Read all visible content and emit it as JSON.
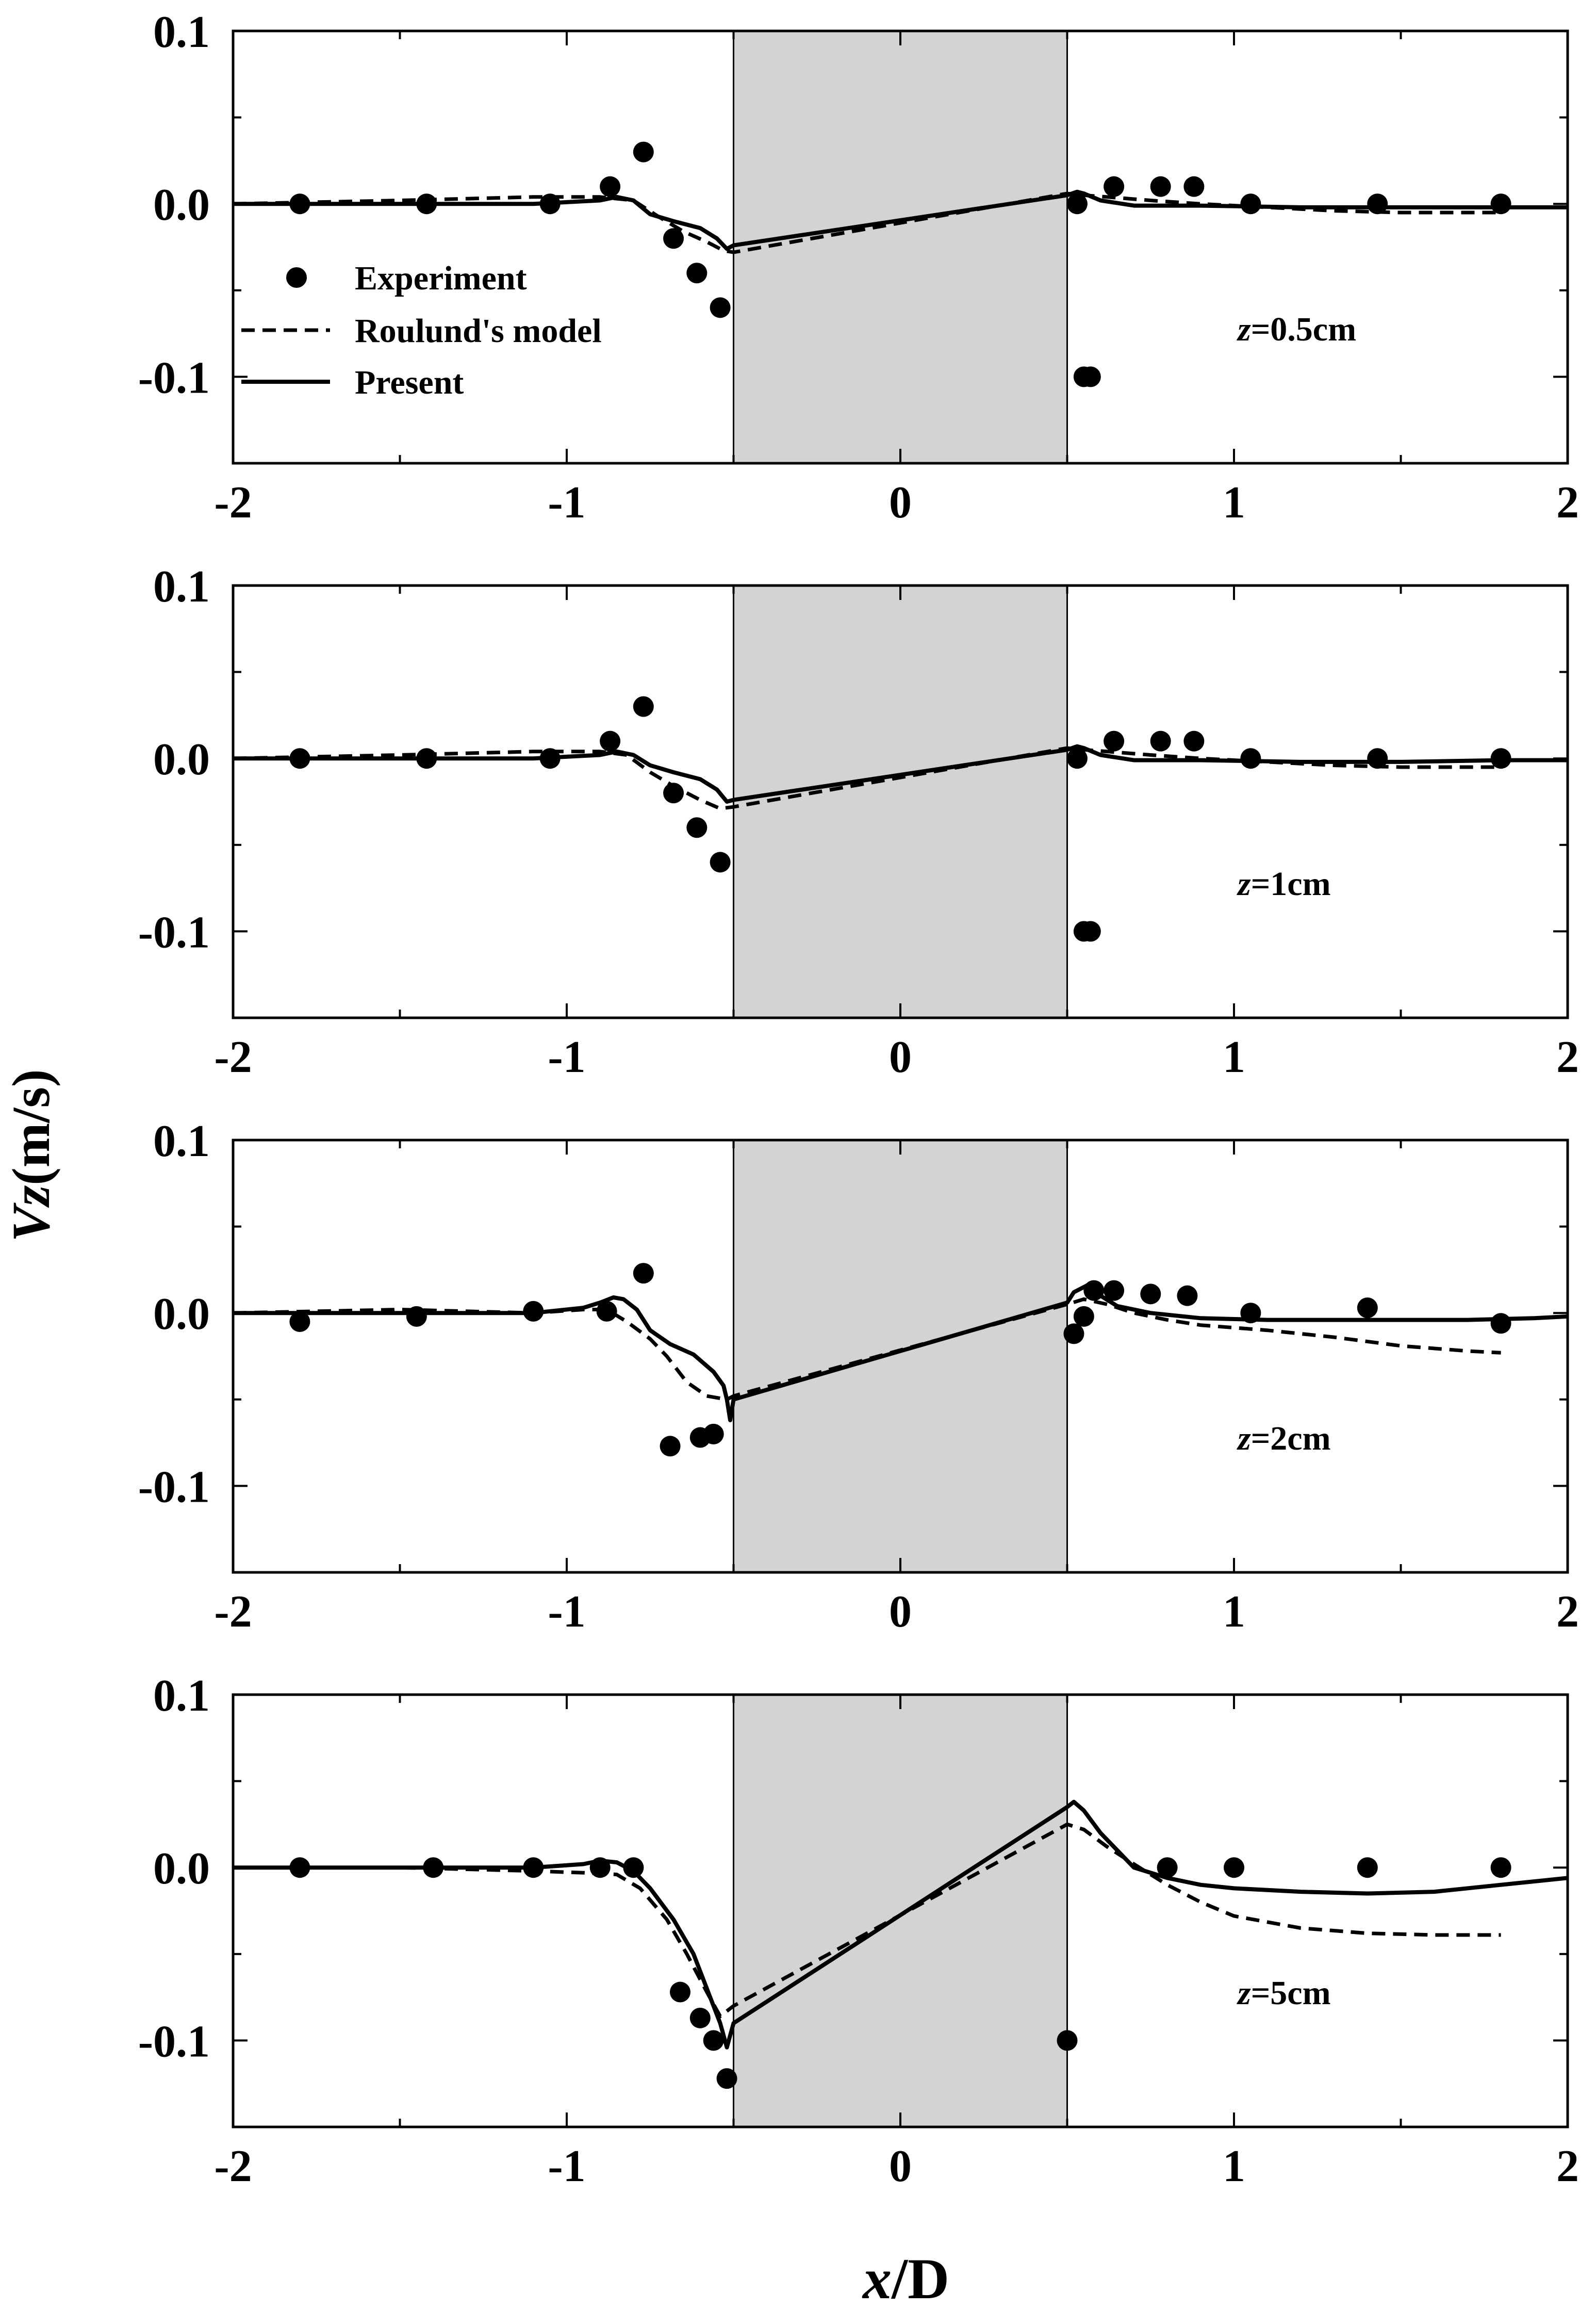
{
  "figure": {
    "xlabel": {
      "italic": "x",
      "rest": "/D"
    },
    "ylabel": {
      "italic": "Vz",
      "rest": "(m/s)"
    }
  },
  "legend": {
    "experiment": "Experiment",
    "roulund": "Roulund's model",
    "present": "Present"
  },
  "colors": {
    "ink": "#000000",
    "pier": "#d3d3d3",
    "background": "#ffffff"
  },
  "chart_data": [
    {
      "type": "line",
      "annotation": {
        "italic": "z",
        "rest": "=0.5cm"
      },
      "xlim": [
        -2,
        2
      ],
      "ylim": [
        -0.15,
        0.1
      ],
      "xticks": [
        "-2",
        "-1",
        "0",
        "1",
        "2"
      ],
      "yticks": [
        "0.1",
        "0.0",
        "-0.1"
      ],
      "pier": [
        -0.5,
        0.5
      ],
      "series": [
        {
          "name": "Experiment",
          "style": "points",
          "x": [
            -1.8,
            -1.42,
            -1.05,
            -0.87,
            -0.77,
            -0.68,
            -0.61,
            -0.54,
            0.53,
            0.55,
            0.57,
            0.64,
            0.78,
            0.88,
            1.05,
            1.43,
            1.8
          ],
          "y": [
            0,
            0,
            0,
            0.01,
            0.03,
            -0.02,
            -0.04,
            -0.06,
            0,
            -0.1,
            -0.1,
            0.01,
            0.01,
            0.01,
            0,
            0,
            0
          ]
        },
        {
          "name": "Roulund's model",
          "style": "dashed",
          "x": [
            -2,
            -1.5,
            -1.1,
            -0.9,
            -0.8,
            -0.72,
            -0.65,
            -0.58,
            -0.53,
            -0.5,
            0.5,
            0.55,
            0.62,
            0.75,
            0.9,
            1.1,
            1.3,
            1.5,
            1.8
          ],
          "y": [
            0,
            0.002,
            0.004,
            0.004,
            0.002,
            -0.008,
            -0.016,
            -0.022,
            -0.027,
            -0.028,
            0.006,
            0.005,
            0.004,
            0.002,
            0,
            -0.002,
            -0.004,
            -0.005,
            -0.005
          ]
        },
        {
          "name": "Present",
          "style": "solid",
          "x": [
            -2,
            -1.5,
            -1.1,
            -0.9,
            -0.85,
            -0.8,
            -0.75,
            -0.68,
            -0.6,
            -0.55,
            -0.52,
            -0.5,
            0.5,
            0.53,
            0.55,
            0.6,
            0.7,
            0.9,
            1.2,
            1.5,
            1.8,
            2.0
          ],
          "y": [
            0,
            0,
            0,
            0.002,
            0.004,
            0.002,
            -0.006,
            -0.01,
            -0.014,
            -0.02,
            -0.026,
            -0.024,
            0.005,
            0.007,
            0.006,
            0.002,
            -0.001,
            -0.001,
            -0.002,
            -0.002,
            -0.002,
            -0.002
          ]
        }
      ]
    },
    {
      "type": "line",
      "annotation": {
        "italic": "z",
        "rest": "=1cm"
      },
      "xlim": [
        -2,
        2
      ],
      "ylim": [
        -0.15,
        0.1
      ],
      "xticks": [
        "-2",
        "-1",
        "0",
        "1",
        "2"
      ],
      "yticks": [
        "0.1",
        "0.0",
        "-0.1"
      ],
      "pier": [
        -0.5,
        0.5
      ],
      "series": [
        {
          "name": "Experiment",
          "style": "points",
          "x": [
            -1.8,
            -1.42,
            -1.05,
            -0.87,
            -0.77,
            -0.68,
            -0.61,
            -0.54,
            0.53,
            0.55,
            0.57,
            0.64,
            0.78,
            0.88,
            1.05,
            1.43,
            1.8
          ],
          "y": [
            0,
            0,
            0,
            0.01,
            0.03,
            -0.02,
            -0.04,
            -0.06,
            0,
            -0.1,
            -0.1,
            0.01,
            0.01,
            0.01,
            0,
            0,
            0
          ]
        },
        {
          "name": "Roulund's model",
          "style": "dashed",
          "x": [
            -2,
            -1.5,
            -1.1,
            -0.9,
            -0.82,
            -0.75,
            -0.68,
            -0.6,
            -0.54,
            -0.5,
            0.5,
            0.55,
            0.62,
            0.75,
            0.9,
            1.1,
            1.3,
            1.5,
            1.8
          ],
          "y": [
            0,
            0.002,
            0.004,
            0.004,
            0.002,
            -0.008,
            -0.016,
            -0.024,
            -0.029,
            -0.028,
            0.006,
            0.005,
            0.004,
            0.002,
            0,
            -0.002,
            -0.004,
            -0.005,
            -0.005
          ]
        },
        {
          "name": "Present",
          "style": "solid",
          "x": [
            -2,
            -1.5,
            -1.1,
            -0.9,
            -0.85,
            -0.8,
            -0.75,
            -0.68,
            -0.6,
            -0.55,
            -0.52,
            -0.5,
            0.5,
            0.53,
            0.55,
            0.6,
            0.7,
            0.9,
            1.2,
            1.5,
            1.8,
            2.0
          ],
          "y": [
            0,
            0,
            0,
            0.002,
            0.004,
            0.002,
            -0.004,
            -0.008,
            -0.012,
            -0.018,
            -0.025,
            -0.024,
            0.005,
            0.007,
            0.006,
            0.002,
            -0.001,
            -0.001,
            -0.002,
            -0.002,
            -0.001,
            -0.001
          ]
        }
      ]
    },
    {
      "type": "line",
      "annotation": {
        "italic": "z",
        "rest": "=2cm"
      },
      "xlim": [
        -2,
        2
      ],
      "ylim": [
        -0.15,
        0.1
      ],
      "xticks": [
        "-2",
        "-1",
        "0",
        "1",
        "2"
      ],
      "yticks": [
        "0.1",
        "0.0",
        "-0.1"
      ],
      "pier": [
        -0.5,
        0.5
      ],
      "series": [
        {
          "name": "Experiment",
          "style": "points",
          "x": [
            -1.8,
            -1.45,
            -1.1,
            -0.88,
            -0.77,
            -0.69,
            -0.6,
            -0.56,
            0.52,
            0.55,
            0.58,
            0.64,
            0.75,
            0.86,
            1.05,
            1.4,
            1.8
          ],
          "y": [
            -0.005,
            -0.002,
            0.001,
            0.001,
            0.023,
            -0.077,
            -0.072,
            -0.07,
            -0.012,
            -0.002,
            0.013,
            0.013,
            0.011,
            0.01,
            0,
            0.003,
            -0.006
          ]
        },
        {
          "name": "Roulund's model",
          "style": "dashed",
          "x": [
            -2,
            -1.5,
            -1.1,
            -0.95,
            -0.88,
            -0.82,
            -0.75,
            -0.7,
            -0.64,
            -0.58,
            -0.52,
            -0.5,
            0.5,
            0.55,
            0.62,
            0.7,
            0.8,
            0.9,
            1.1,
            1.3,
            1.5,
            1.7,
            1.8
          ],
          "y": [
            0,
            0.002,
            0,
            0.002,
            0.002,
            -0.005,
            -0.015,
            -0.025,
            -0.04,
            -0.048,
            -0.05,
            -0.048,
            0.005,
            0.008,
            0.005,
            0,
            -0.004,
            -0.007,
            -0.01,
            -0.014,
            -0.019,
            -0.022,
            -0.023
          ]
        },
        {
          "name": "Present",
          "style": "solid",
          "x": [
            -2,
            -1.5,
            -1.1,
            -0.95,
            -0.9,
            -0.86,
            -0.83,
            -0.79,
            -0.75,
            -0.69,
            -0.62,
            -0.56,
            -0.53,
            -0.52,
            -0.51,
            -0.5,
            0.5,
            0.52,
            0.56,
            0.6,
            0.65,
            0.75,
            0.9,
            1.1,
            1.3,
            1.5,
            1.7,
            1.9,
            2.0
          ],
          "y": [
            0,
            0,
            0,
            0.003,
            0.006,
            0.009,
            0.008,
            0.002,
            -0.01,
            -0.018,
            -0.024,
            -0.034,
            -0.042,
            -0.05,
            -0.062,
            -0.05,
            0.006,
            0.012,
            0.016,
            0.01,
            0.004,
            0,
            -0.003,
            -0.004,
            -0.004,
            -0.004,
            -0.004,
            -0.003,
            -0.002
          ]
        }
      ]
    },
    {
      "type": "line",
      "annotation": {
        "italic": "z",
        "rest": "=5cm"
      },
      "xlim": [
        -2,
        2
      ],
      "ylim": [
        -0.15,
        0.1
      ],
      "xticks": [
        "-2",
        "-1",
        "0",
        "1",
        "2"
      ],
      "yticks": [
        "0.1",
        "0.0",
        "-0.1"
      ],
      "pier": [
        -0.5,
        0.5
      ],
      "series": [
        {
          "name": "Experiment",
          "style": "points",
          "x": [
            -1.8,
            -1.4,
            -1.1,
            -0.9,
            -0.8,
            -0.66,
            -0.6,
            -0.56,
            -0.52,
            0.5,
            0.8,
            1.0,
            1.4,
            1.8
          ],
          "y": [
            0,
            0,
            0,
            0,
            0,
            -0.072,
            -0.087,
            -0.1,
            -0.122,
            -0.1,
            0,
            0,
            0,
            0
          ]
        },
        {
          "name": "Roulund's model",
          "style": "dashed",
          "x": [
            -2,
            -1.5,
            -1.1,
            -0.95,
            -0.85,
            -0.78,
            -0.7,
            -0.64,
            -0.58,
            -0.54,
            -0.5,
            0.5,
            0.55,
            0.62,
            0.7,
            0.8,
            0.9,
            1.0,
            1.2,
            1.4,
            1.6,
            1.8
          ],
          "y": [
            0,
            0,
            -0.002,
            -0.003,
            -0.004,
            -0.012,
            -0.03,
            -0.05,
            -0.072,
            -0.086,
            -0.08,
            0.025,
            0.022,
            0.012,
            0.002,
            -0.01,
            -0.02,
            -0.028,
            -0.035,
            -0.038,
            -0.039,
            -0.039
          ]
        },
        {
          "name": "Present",
          "style": "solid",
          "x": [
            -2,
            -1.5,
            -1.1,
            -0.95,
            -0.9,
            -0.85,
            -0.8,
            -0.75,
            -0.68,
            -0.62,
            -0.57,
            -0.54,
            -0.52,
            -0.5,
            0.5,
            0.52,
            0.55,
            0.6,
            0.7,
            0.8,
            0.9,
            1.0,
            1.2,
            1.4,
            1.6,
            1.8,
            2.0
          ],
          "y": [
            0,
            0,
            0,
            0.002,
            0.004,
            0.003,
            -0.002,
            -0.012,
            -0.03,
            -0.05,
            -0.075,
            -0.09,
            -0.104,
            -0.09,
            0.035,
            0.038,
            0.033,
            0.02,
            0,
            -0.006,
            -0.01,
            -0.012,
            -0.014,
            -0.015,
            -0.014,
            -0.01,
            -0.006
          ]
        }
      ]
    }
  ]
}
